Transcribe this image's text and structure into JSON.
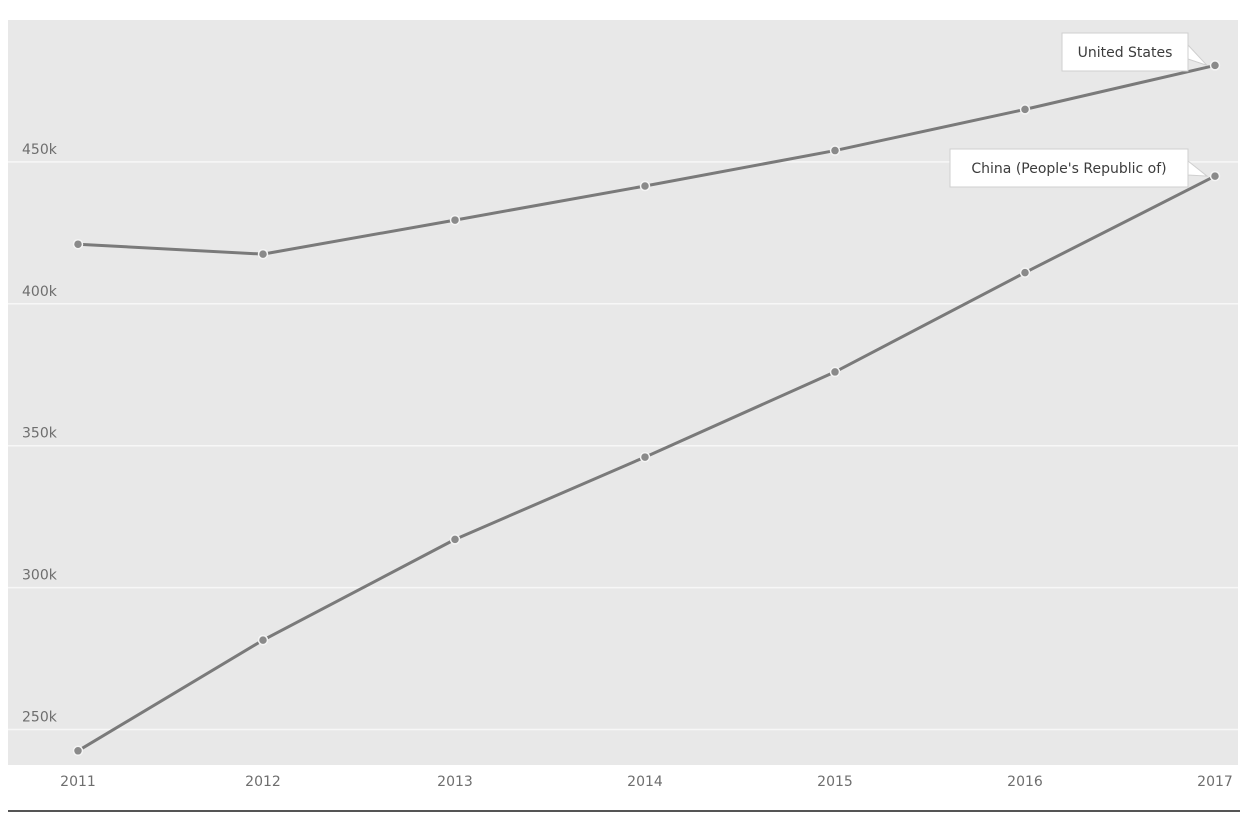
{
  "chart_data": {
    "type": "line",
    "title": "",
    "xlabel": "",
    "ylabel": "",
    "x": [
      "2011",
      "2012",
      "2013",
      "2014",
      "2015",
      "2016",
      "2017"
    ],
    "xlim": [
      2011,
      2017
    ],
    "ylim": [
      237500,
      500000
    ],
    "y_ticks": [
      250000,
      300000,
      350000,
      400000,
      450000
    ],
    "y_tick_labels": [
      "250k",
      "300k",
      "350k",
      "400k",
      "450k"
    ],
    "grid": "horizontal",
    "legend": "direct labels at series end",
    "series": [
      {
        "name": "United States",
        "values": [
          421000,
          417500,
          429500,
          441500,
          454000,
          468500,
          484000
        ]
      },
      {
        "name": "China (People's Republic of)",
        "values": [
          242500,
          281500,
          317000,
          346000,
          376000,
          411000,
          445000
        ]
      }
    ]
  },
  "colors": {
    "plot_background": "#e8e8e8",
    "gridline": "#f7f7f7",
    "line": "#7a7a7a",
    "marker": "#8a8a8a",
    "tick_text": "#6e6e6e",
    "callout_background": "#ffffff",
    "baseline": "#555555"
  }
}
